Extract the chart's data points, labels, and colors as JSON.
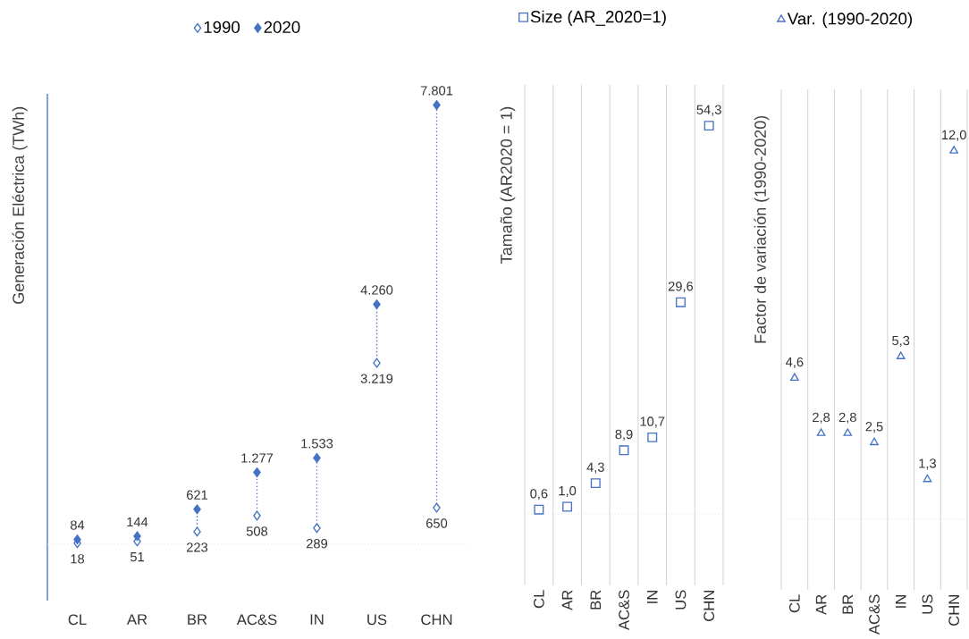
{
  "chart_data": [
    {
      "type": "scatter",
      "ylabel": "Generación Eléctrica (TWh)",
      "categories": [
        "CL",
        "AR",
        "BR",
        "AC&S",
        "IN",
        "US",
        "CHN"
      ],
      "series": [
        {
          "name": "1990",
          "color": "#4472c4",
          "values": [
            18,
            51,
            223,
            508,
            289,
            3219,
            650
          ],
          "value_labels": [
            "18",
            "51",
            "223",
            "508",
            "289",
            "3.219",
            "650"
          ]
        },
        {
          "name": "2020",
          "color": "#4472c4",
          "values": [
            84,
            144,
            621,
            1277,
            1533,
            4260,
            7801
          ],
          "value_labels": [
            "84",
            "144",
            "621",
            "1.277",
            "1.533",
            "4.260",
            "7.801"
          ]
        }
      ],
      "ylim": [
        -1000,
        8000
      ],
      "tick_labels": "x",
      "legend": "top",
      "marker": "diamond",
      "ref_lines": [
        {
          "axis": "y",
          "value": 0,
          "color": "#e0e0e0",
          "line_style": "dotted"
        }
      ]
    },
    {
      "type": "scatter",
      "ylabel": "Tamaño (AR2020 = 1)",
      "categories": [
        "CL",
        "AR",
        "BR",
        "AC&S",
        "IN",
        "US",
        "CHN"
      ],
      "series": [
        {
          "name": "Size (AR_2020=1)",
          "color": "#4472c4",
          "values": [
            0.6,
            1.0,
            4.3,
            8.9,
            10.7,
            29.6,
            54.3
          ],
          "value_labels": [
            "0,6",
            "1,0",
            "4,3",
            "8,9",
            "10,7",
            "29,6",
            "54,3"
          ]
        }
      ],
      "ylim": [
        -10,
        60
      ],
      "tick_labels": "x",
      "legend": "top",
      "marker": "square",
      "grid": "x",
      "ref_lines": [
        {
          "axis": "y",
          "value": 0,
          "color": "#e0e0e0",
          "line_style": "dotted"
        }
      ]
    },
    {
      "type": "scatter",
      "ylabel": "Factor de variación (1990-2020)",
      "categories": [
        "CL",
        "AR",
        "BR",
        "AC&S",
        "IN",
        "US",
        "CHN"
      ],
      "series": [
        {
          "name": "Var. (1990-2020)",
          "color": "#4472c4",
          "values": [
            4.6,
            2.8,
            2.8,
            2.5,
            5.3,
            1.3,
            12.0
          ],
          "value_labels": [
            "4,6",
            "2,8",
            "2,8",
            "2,5",
            "5,3",
            "1,3",
            "12,0"
          ]
        }
      ],
      "ylim": [
        -2.3,
        14
      ],
      "tick_labels": "x",
      "legend": "top",
      "marker": "triangle",
      "grid": "x",
      "ref_lines": [
        {
          "axis": "y",
          "value": 0,
          "color": "#e0e0e0",
          "line_style": "dotted"
        }
      ]
    }
  ]
}
